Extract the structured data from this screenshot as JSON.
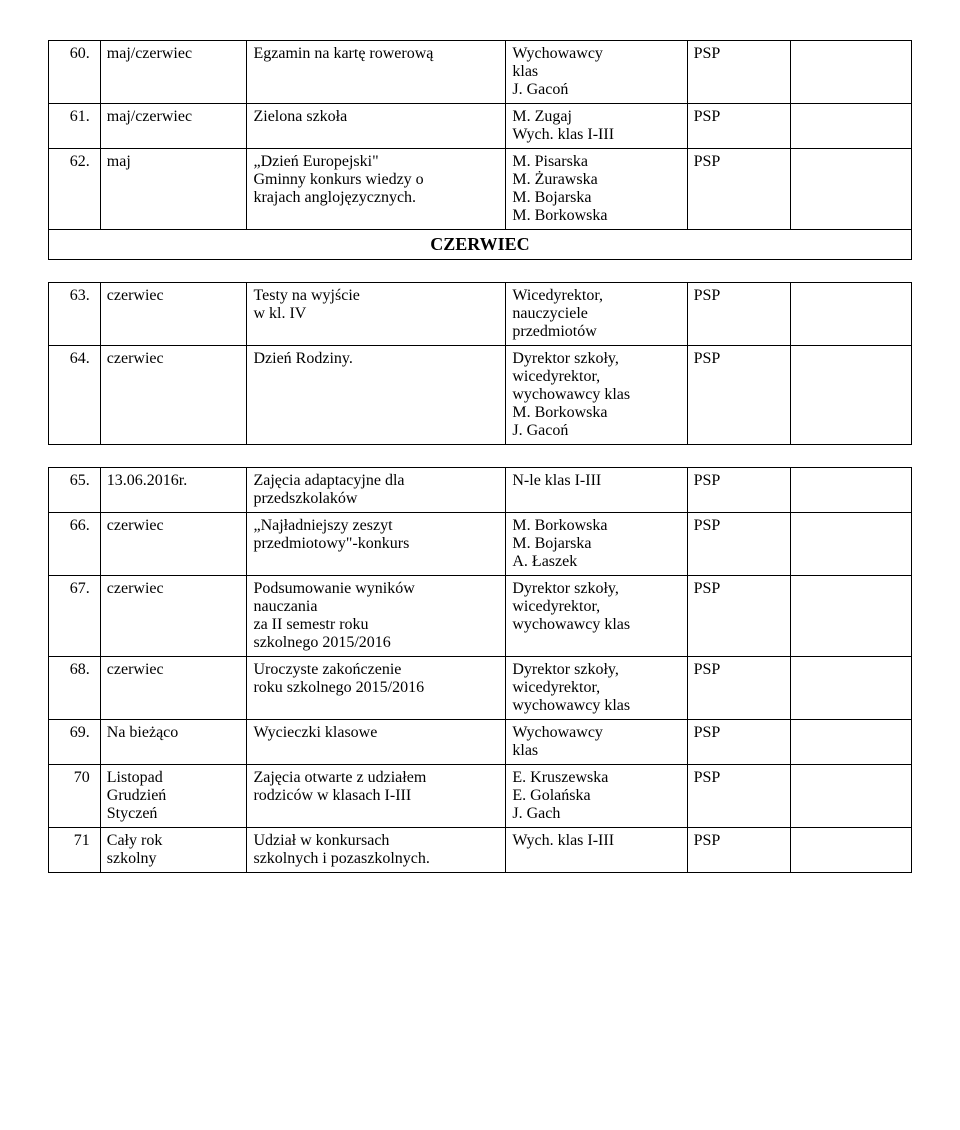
{
  "section_label": "CZERWIEC",
  "table1": {
    "rows": [
      {
        "num": "60.",
        "when": "maj/czerwiec",
        "what": "Egzamin na kartę rowerową",
        "who": "Wychowawcy\nklas\nJ. Gacoń",
        "org": "PSP",
        "note": ""
      },
      {
        "num": "61.",
        "when": "maj/czerwiec",
        "what": "Zielona szkoła",
        "who": "M. Zugaj\nWych. klas I-III",
        "org": "PSP",
        "note": ""
      },
      {
        "num": "62.",
        "when": "maj",
        "what": "„Dzień Europejski\"\nGminny konkurs wiedzy o\nkrajach anglojęzycznych.",
        "who": "M. Pisarska\nM. Żurawska\nM. Bojarska\nM. Borkowska",
        "org": "PSP",
        "note": ""
      }
    ]
  },
  "table2": {
    "rows": [
      {
        "num": "63.",
        "when": "czerwiec",
        "what": "Testy na wyjście\nw kl. IV",
        "who": "Wicedyrektor,\nnauczyciele\nprzedmiotów",
        "org": "PSP",
        "note": ""
      },
      {
        "num": "64.",
        "when": "czerwiec",
        "what": "Dzień Rodziny.",
        "who": "Dyrektor szkoły,\nwicedyrektor,\nwychowawcy klas\nM. Borkowska\nJ. Gacoń",
        "org": "PSP",
        "note": ""
      }
    ]
  },
  "table3": {
    "rows": [
      {
        "num": "65.",
        "when": "13.06.2016r.",
        "what": "Zajęcia adaptacyjne dla\nprzedszkolaków",
        "who": "N-le klas I-III",
        "org": "PSP",
        "note": ""
      },
      {
        "num": "66.",
        "when": "czerwiec",
        "what": "„Najładniejszy zeszyt\nprzedmiotowy\"-konkurs",
        "who": "M. Borkowska\nM. Bojarska\nA. Łaszek",
        "org": "PSP",
        "note": ""
      },
      {
        "num": "67.",
        "when": "czerwiec",
        "what": "Podsumowanie wyników\nnauczania\nza II semestr roku\nszkolnego 2015/2016",
        "who": "Dyrektor szkoły,\nwicedyrektor,\nwychowawcy klas",
        "org": "PSP",
        "note": ""
      },
      {
        "num": "68.",
        "when": "czerwiec",
        "what": "Uroczyste zakończenie\nroku szkolnego 2015/2016",
        "who": "Dyrektor szkoły,\nwicedyrektor,\nwychowawcy klas",
        "org": "PSP",
        "note": ""
      },
      {
        "num": "69.",
        "when": "Na bieżąco",
        "what": "Wycieczki klasowe",
        "who": "Wychowawcy\nklas",
        "org": "PSP",
        "note": ""
      },
      {
        "num": "70",
        "when": "Listopad\nGrudzień\nStyczeń",
        "what": "Zajęcia otwarte z udziałem\nrodziców w klasach I-III",
        "who": "E. Kruszewska\nE. Golańska\nJ. Gach",
        "org": "PSP",
        "note": ""
      },
      {
        "num": "71",
        "when": "Cały rok\nszkolny",
        "what": "Udział w konkursach\nszkolnych i pozaszkolnych.",
        "who": "Wych. klas I-III",
        "org": "PSP",
        "note": ""
      }
    ]
  }
}
